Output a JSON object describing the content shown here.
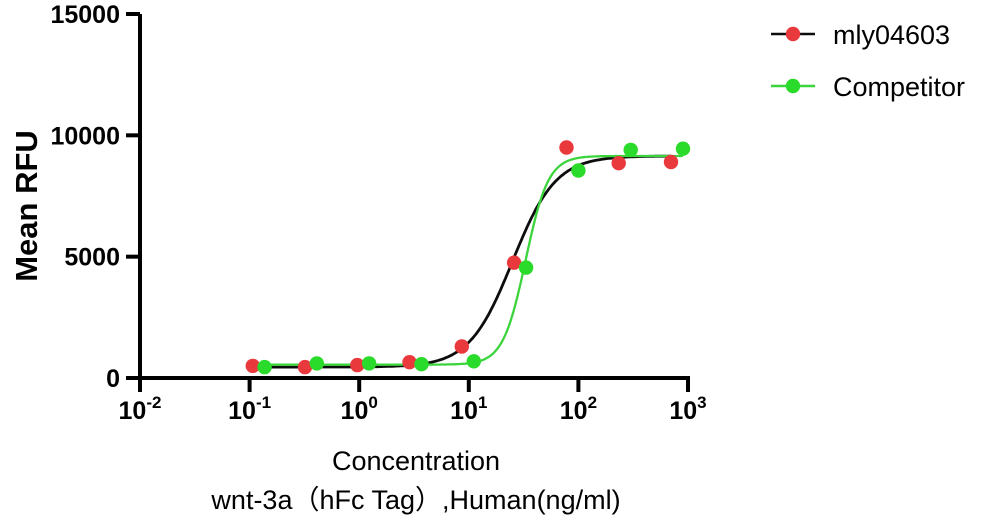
{
  "chart_data": {
    "type": "scatter",
    "subtype": "dose-response-4PL",
    "ylabel": "Mean RFU",
    "xlabel_line1": "Concentration",
    "xlabel_line2": "wnt-3a（hFc Tag）,Human(ng/ml)",
    "x_scale": "log10",
    "x_decade_range": [
      -2,
      3
    ],
    "ylim": [
      0,
      15000
    ],
    "grid": false,
    "axis_color": "#000000",
    "y_ticks": [
      {
        "value": 0,
        "label": "0"
      },
      {
        "value": 5000,
        "label": "5000"
      },
      {
        "value": 10000,
        "label": "10000"
      },
      {
        "value": 15000,
        "label": "15000"
      }
    ],
    "x_ticks": [
      {
        "decade": -2,
        "base": "10",
        "exp": "-2"
      },
      {
        "decade": -1,
        "base": "10",
        "exp": "-1"
      },
      {
        "decade": 0,
        "base": "10",
        "exp": "0"
      },
      {
        "decade": 1,
        "base": "10",
        "exp": "1"
      },
      {
        "decade": 2,
        "base": "10",
        "exp": "2"
      },
      {
        "decade": 3,
        "base": "10",
        "exp": "3"
      }
    ],
    "series": [
      {
        "name": "mly04603",
        "marker_color": "#e9393c",
        "line_color": "#0d0d0d",
        "points": [
          [
            0.107,
            500
          ],
          [
            0.32,
            450
          ],
          [
            0.96,
            530
          ],
          [
            2.88,
            650
          ],
          [
            8.64,
            1300
          ],
          [
            25.9,
            4750
          ],
          [
            77.8,
            9500
          ],
          [
            233,
            8850
          ],
          [
            700,
            8900
          ]
        ],
        "fit": {
          "bottom": 450,
          "top": 9150,
          "ec50": 25,
          "hill": 2.2
        }
      },
      {
        "name": "Competitor",
        "marker_color": "#2bdb2b",
        "line_color": "#3cd43c",
        "points": [
          [
            0.137,
            450
          ],
          [
            0.41,
            600
          ],
          [
            1.23,
            600
          ],
          [
            3.7,
            570
          ],
          [
            11.1,
            690
          ],
          [
            33.3,
            4550
          ],
          [
            100,
            8550
          ],
          [
            300,
            9400
          ],
          [
            900,
            9450
          ]
        ],
        "fit": {
          "bottom": 550,
          "top": 9150,
          "ec50": 33,
          "hill": 4.2
        }
      }
    ],
    "legend": {
      "position": "top-right",
      "entries": [
        {
          "label": "mly04603"
        },
        {
          "label": "Competitor"
        }
      ]
    }
  }
}
